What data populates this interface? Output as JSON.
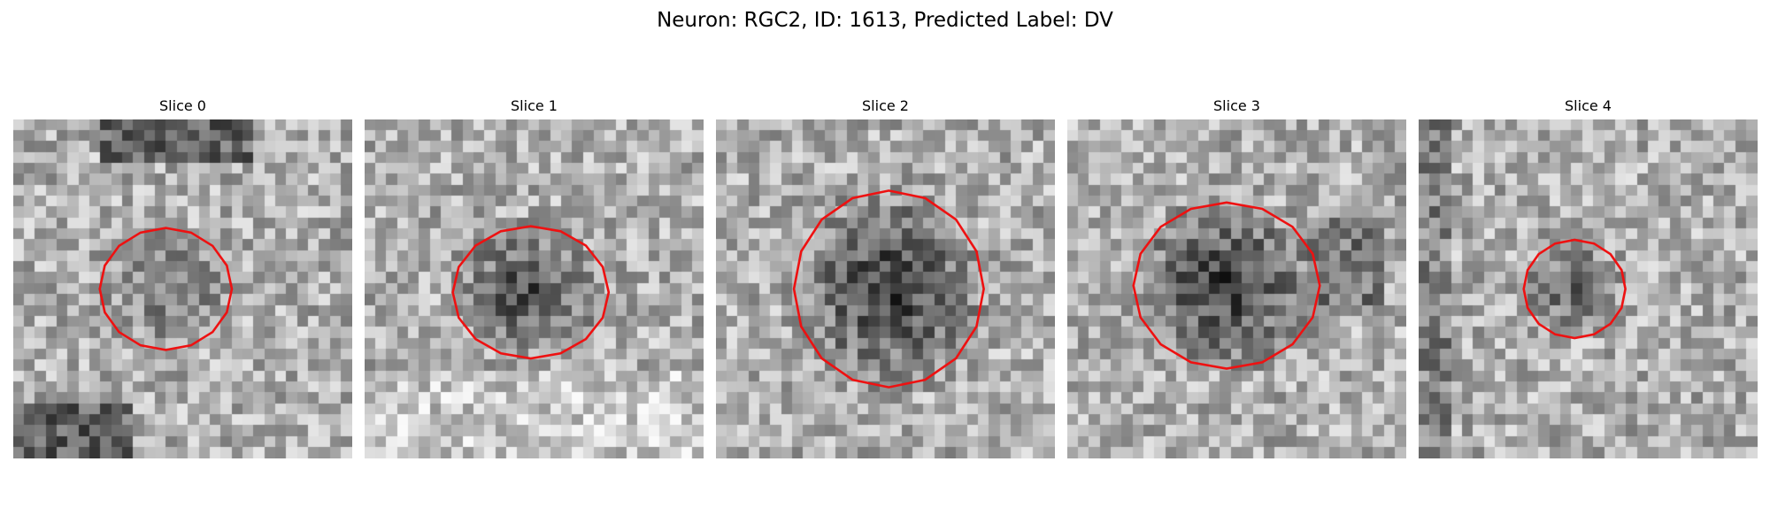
{
  "figure": {
    "suptitle": "Neuron: RGC2, ID: 1613, Predicted Label: DV"
  },
  "panels": [
    {
      "title": "Slice 0",
      "blob_darkness": 0.35,
      "outline_color": "#ee1111",
      "outline": {
        "center": [
          0.45,
          0.5
        ],
        "radii": [
          0.39,
          0.36
        ]
      },
      "texture": {
        "dark_top": true,
        "dark_bottom_left": true
      }
    },
    {
      "title": "Slice 1",
      "blob_darkness": 0.7,
      "outline_color": "#ee1111",
      "outline": {
        "center": [
          0.49,
          0.51
        ],
        "radii": [
          0.46,
          0.39
        ]
      },
      "texture": {
        "bright_bottom": true
      }
    },
    {
      "title": "Slice 2",
      "blob_darkness": 0.85,
      "outline_color": "#ee1111",
      "outline": {
        "center": [
          0.51,
          0.5
        ],
        "radii": [
          0.56,
          0.58
        ]
      },
      "texture": {}
    },
    {
      "title": "Slice 3",
      "blob_darkness": 0.85,
      "outline_color": "#ee1111",
      "outline": {
        "center": [
          0.47,
          0.49
        ],
        "radii": [
          0.55,
          0.49
        ]
      },
      "texture": {
        "dark_right": true
      }
    },
    {
      "title": "Slice 4",
      "blob_darkness": 0.55,
      "outline_color": "#ee1111",
      "outline": {
        "center": [
          0.46,
          0.5
        ],
        "radii": [
          0.3,
          0.29
        ]
      },
      "texture": {
        "dark_left": true
      }
    }
  ]
}
